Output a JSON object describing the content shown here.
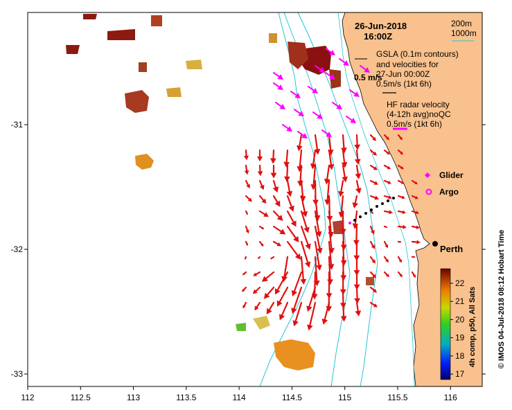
{
  "chart_data": {
    "type": "map",
    "title": "26-Jun-2018",
    "time": "16:00Z",
    "x_ticks": [
      "112",
      "112.5",
      "113",
      "113.5",
      "114",
      "114.5",
      "115",
      "115.5",
      "116"
    ],
    "y_ticks": [
      "-31",
      "-32",
      "-33"
    ],
    "xlim": [
      112,
      116.3
    ],
    "ylim": [
      -33.1,
      -30.1
    ],
    "legend": {
      "isobath_200": "200m",
      "isobath_1000": "1000m",
      "gsla_line1": "GSLA (0.1m contours)",
      "gsla_line2": "and velocities for",
      "gsla_line3": "27-Jun 00:00Z",
      "gsla_scale": "0.5m/s (1kt 6h)",
      "hf_line1": "HF radar velocity",
      "hf_line2": "(4-12h avg)noQC",
      "hf_scale": "0.5m/s (1kt 6h)",
      "speed_label": "0.5 m/s",
      "glider": "Glider",
      "argo": "Argo"
    },
    "city": "Perth",
    "colorbar": {
      "label": "4h comp, p50, All Sats",
      "ticks": [
        "22",
        "21",
        "20",
        "19",
        "18",
        "17"
      ],
      "range": [
        16.7,
        22.8
      ]
    },
    "credit": "© IMOS 04-Jul-2018 08:12 Hobart Time",
    "colors": {
      "land": "#f9c18d",
      "hf": "#e01010",
      "gsla": "#ff00ff",
      "isobath": "#22c4d6"
    }
  }
}
